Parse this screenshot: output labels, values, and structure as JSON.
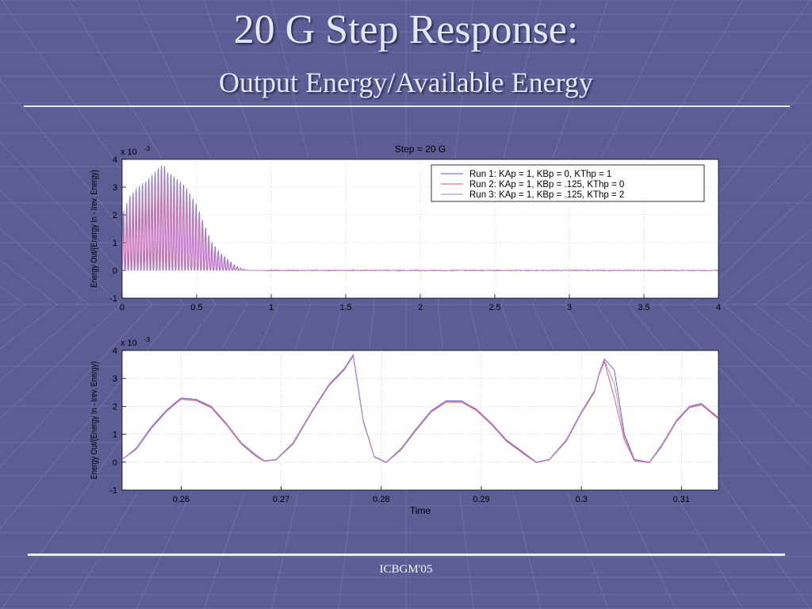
{
  "slide": {
    "title": "20 G Step Response:",
    "subtitle": "Output Energy/Available Energy",
    "footer": "ICBGM'05"
  },
  "colors": {
    "background": "#5b5e94",
    "run1": "#5a5ae6",
    "run2": "#e0506e",
    "run3": "#b08ac0"
  },
  "chart_data": [
    {
      "type": "line",
      "title": "Step = 20 G",
      "xlabel": "",
      "ylabel": "Energy Out/(Energy In - Irev. Energy)",
      "exponent_label": "x 10",
      "exponent_power": "-3",
      "xlim": [
        0,
        4
      ],
      "ylim": [
        -1,
        4
      ],
      "xticks": [
        "0",
        "0.5",
        "1",
        "1.5",
        "2",
        "2.5",
        "3",
        "3.5",
        "4"
      ],
      "yticks": [
        "-1",
        "0",
        "1",
        "2",
        "3",
        "4"
      ],
      "grid": true,
      "legend_position": "top-right",
      "series": [
        {
          "name": "Run 1: KAp = 1, KBp = 0, KThp = 1",
          "envelope": {
            "x": [
              0,
              0.05,
              0.1,
              0.15,
              0.2,
              0.25,
              0.28,
              0.3,
              0.35,
              0.4,
              0.45,
              0.5,
              0.55,
              0.6,
              0.65,
              0.7,
              0.75,
              0.8,
              0.85,
              4
            ],
            "y": [
              2.0,
              2.7,
              3.0,
              3.2,
              3.45,
              3.75,
              3.85,
              3.6,
              3.4,
              3.2,
              2.85,
              2.4,
              1.7,
              1.05,
              0.7,
              0.45,
              0.22,
              0.08,
              0.0,
              0.0
            ]
          }
        },
        {
          "name": "Run 2: KAp = 1, KBp = .125, KThp = 0",
          "envelope": {
            "x": [
              0,
              0.05,
              0.1,
              0.15,
              0.2,
              0.25,
              0.28,
              0.3,
              0.35,
              0.4,
              0.45,
              0.5,
              0.55,
              0.6,
              0.65,
              0.7,
              0.75,
              0.8,
              0.85,
              4
            ],
            "y": [
              2.0,
              2.65,
              2.95,
              3.15,
              3.4,
              3.7,
              3.8,
              3.55,
              3.35,
              3.15,
              2.8,
              2.35,
              1.65,
              1.0,
              0.65,
              0.42,
              0.2,
              0.07,
              0.0,
              0.0
            ]
          }
        },
        {
          "name": "Run 3: KAp = 1, KBp = .125, KThp = 2",
          "envelope": {
            "x": [
              0,
              0.05,
              0.1,
              0.15,
              0.2,
              0.25,
              0.28,
              0.3,
              0.35,
              0.4,
              0.45,
              0.5,
              0.55,
              0.6,
              0.65,
              0.7,
              0.75,
              0.8,
              0.85,
              4
            ],
            "y": [
              1.9,
              2.6,
              2.9,
              3.1,
              3.35,
              3.65,
              3.75,
              3.5,
              3.3,
              3.1,
              2.75,
              2.3,
              1.6,
              0.95,
              0.6,
              0.4,
              0.18,
              0.06,
              0.0,
              0.0
            ]
          }
        }
      ]
    },
    {
      "type": "line",
      "title": "",
      "xlabel": "Time",
      "ylabel": "Energy Out/(Energy In - Irev. Energy)",
      "exponent_label": "x 10",
      "exponent_power": "-3",
      "xlim": [
        0.2541,
        0.3137
      ],
      "ylim": [
        -1,
        4
      ],
      "xticks": [
        "0.26",
        "0.27",
        "0.28",
        "0.29",
        "0.3",
        "0.31"
      ],
      "xtick_values": [
        0.26,
        0.27,
        0.28,
        0.29,
        0.3,
        0.31
      ],
      "yticks": [
        "-1",
        "0",
        "1",
        "2",
        "3",
        "4"
      ],
      "grid": true,
      "series": [
        {
          "name": "Run 1: KAp = 1, KBp = 0, KThp = 1",
          "x": [
            0.2541,
            0.2555,
            0.257,
            0.2585,
            0.2593,
            0.26,
            0.2615,
            0.263,
            0.2645,
            0.266,
            0.2675,
            0.2683,
            0.2695,
            0.2712,
            0.273,
            0.2748,
            0.2763,
            0.2772,
            0.2782,
            0.2793,
            0.2805,
            0.282,
            0.2835,
            0.285,
            0.2865,
            0.288,
            0.2895,
            0.291,
            0.2925,
            0.2944,
            0.2955,
            0.2968,
            0.2985,
            0.3,
            0.3013,
            0.3018,
            0.3023,
            0.3033,
            0.3043,
            0.3053,
            0.3068,
            0.308,
            0.3095,
            0.3108,
            0.312,
            0.3137
          ],
          "y": [
            0.1,
            0.5,
            1.25,
            1.85,
            2.1,
            2.3,
            2.25,
            2.0,
            1.4,
            0.7,
            0.25,
            0.05,
            0.1,
            0.7,
            1.8,
            2.8,
            3.35,
            3.85,
            1.5,
            0.2,
            0.0,
            0.5,
            1.2,
            1.85,
            2.2,
            2.2,
            1.9,
            1.4,
            0.8,
            0.3,
            0.0,
            0.1,
            0.8,
            1.8,
            2.55,
            3.2,
            3.7,
            3.3,
            1.0,
            0.1,
            0.0,
            0.6,
            1.5,
            2.0,
            2.1,
            1.6
          ]
        },
        {
          "name": "Run 2: KAp = 1, KBp = .125, KThp = 0",
          "x": [
            0.2541,
            0.2555,
            0.257,
            0.2585,
            0.2593,
            0.26,
            0.2615,
            0.263,
            0.2645,
            0.266,
            0.2675,
            0.2683,
            0.2695,
            0.2712,
            0.273,
            0.2748,
            0.2763,
            0.2772,
            0.2782,
            0.2793,
            0.2805,
            0.282,
            0.2835,
            0.285,
            0.2865,
            0.288,
            0.2895,
            0.291,
            0.2925,
            0.2944,
            0.2955,
            0.2968,
            0.2985,
            0.3,
            0.3013,
            0.3018,
            0.3023,
            0.3033,
            0.3043,
            0.3053,
            0.3068,
            0.308,
            0.3095,
            0.3108,
            0.312,
            0.3137
          ],
          "y": [
            0.1,
            0.45,
            1.2,
            1.8,
            2.05,
            2.25,
            2.2,
            1.95,
            1.35,
            0.65,
            0.2,
            0.03,
            0.08,
            0.65,
            1.75,
            2.75,
            3.3,
            3.8,
            1.45,
            0.18,
            -0.02,
            0.45,
            1.15,
            1.8,
            2.15,
            2.15,
            1.85,
            1.35,
            0.75,
            0.25,
            -0.02,
            0.08,
            0.75,
            1.75,
            2.5,
            3.15,
            3.6,
            2.3,
            0.8,
            0.05,
            -0.02,
            0.55,
            1.45,
            1.95,
            2.05,
            1.55
          ]
        },
        {
          "name": "Run 3: KAp = 1, KBp = .125, KThp = 2",
          "x": [
            0.2541,
            0.2555,
            0.257,
            0.2585,
            0.2593,
            0.26,
            0.2615,
            0.263,
            0.2645,
            0.266,
            0.2675,
            0.2683,
            0.2695,
            0.2712,
            0.273,
            0.2748,
            0.2763,
            0.2772,
            0.2782,
            0.2793,
            0.2805,
            0.282,
            0.2835,
            0.285,
            0.2865,
            0.288,
            0.2895,
            0.291,
            0.2925,
            0.2944,
            0.2955,
            0.2968,
            0.2985,
            0.3,
            0.3013,
            0.3018,
            0.3023,
            0.3033,
            0.3043,
            0.3053,
            0.3068,
            0.308,
            0.3095,
            0.3108,
            0.312,
            0.3137
          ],
          "y": [
            0.1,
            0.48,
            1.22,
            1.82,
            2.08,
            2.28,
            2.22,
            1.98,
            1.38,
            0.68,
            0.22,
            0.04,
            0.09,
            0.68,
            1.78,
            2.78,
            3.32,
            3.82,
            1.48,
            0.19,
            -0.01,
            0.48,
            1.18,
            1.82,
            2.18,
            2.18,
            1.88,
            1.38,
            0.78,
            0.28,
            -0.01,
            0.09,
            0.78,
            1.78,
            2.52,
            3.18,
            3.65,
            2.8,
            0.9,
            0.08,
            -0.01,
            0.58,
            1.48,
            1.98,
            2.08,
            1.58
          ]
        }
      ]
    }
  ]
}
